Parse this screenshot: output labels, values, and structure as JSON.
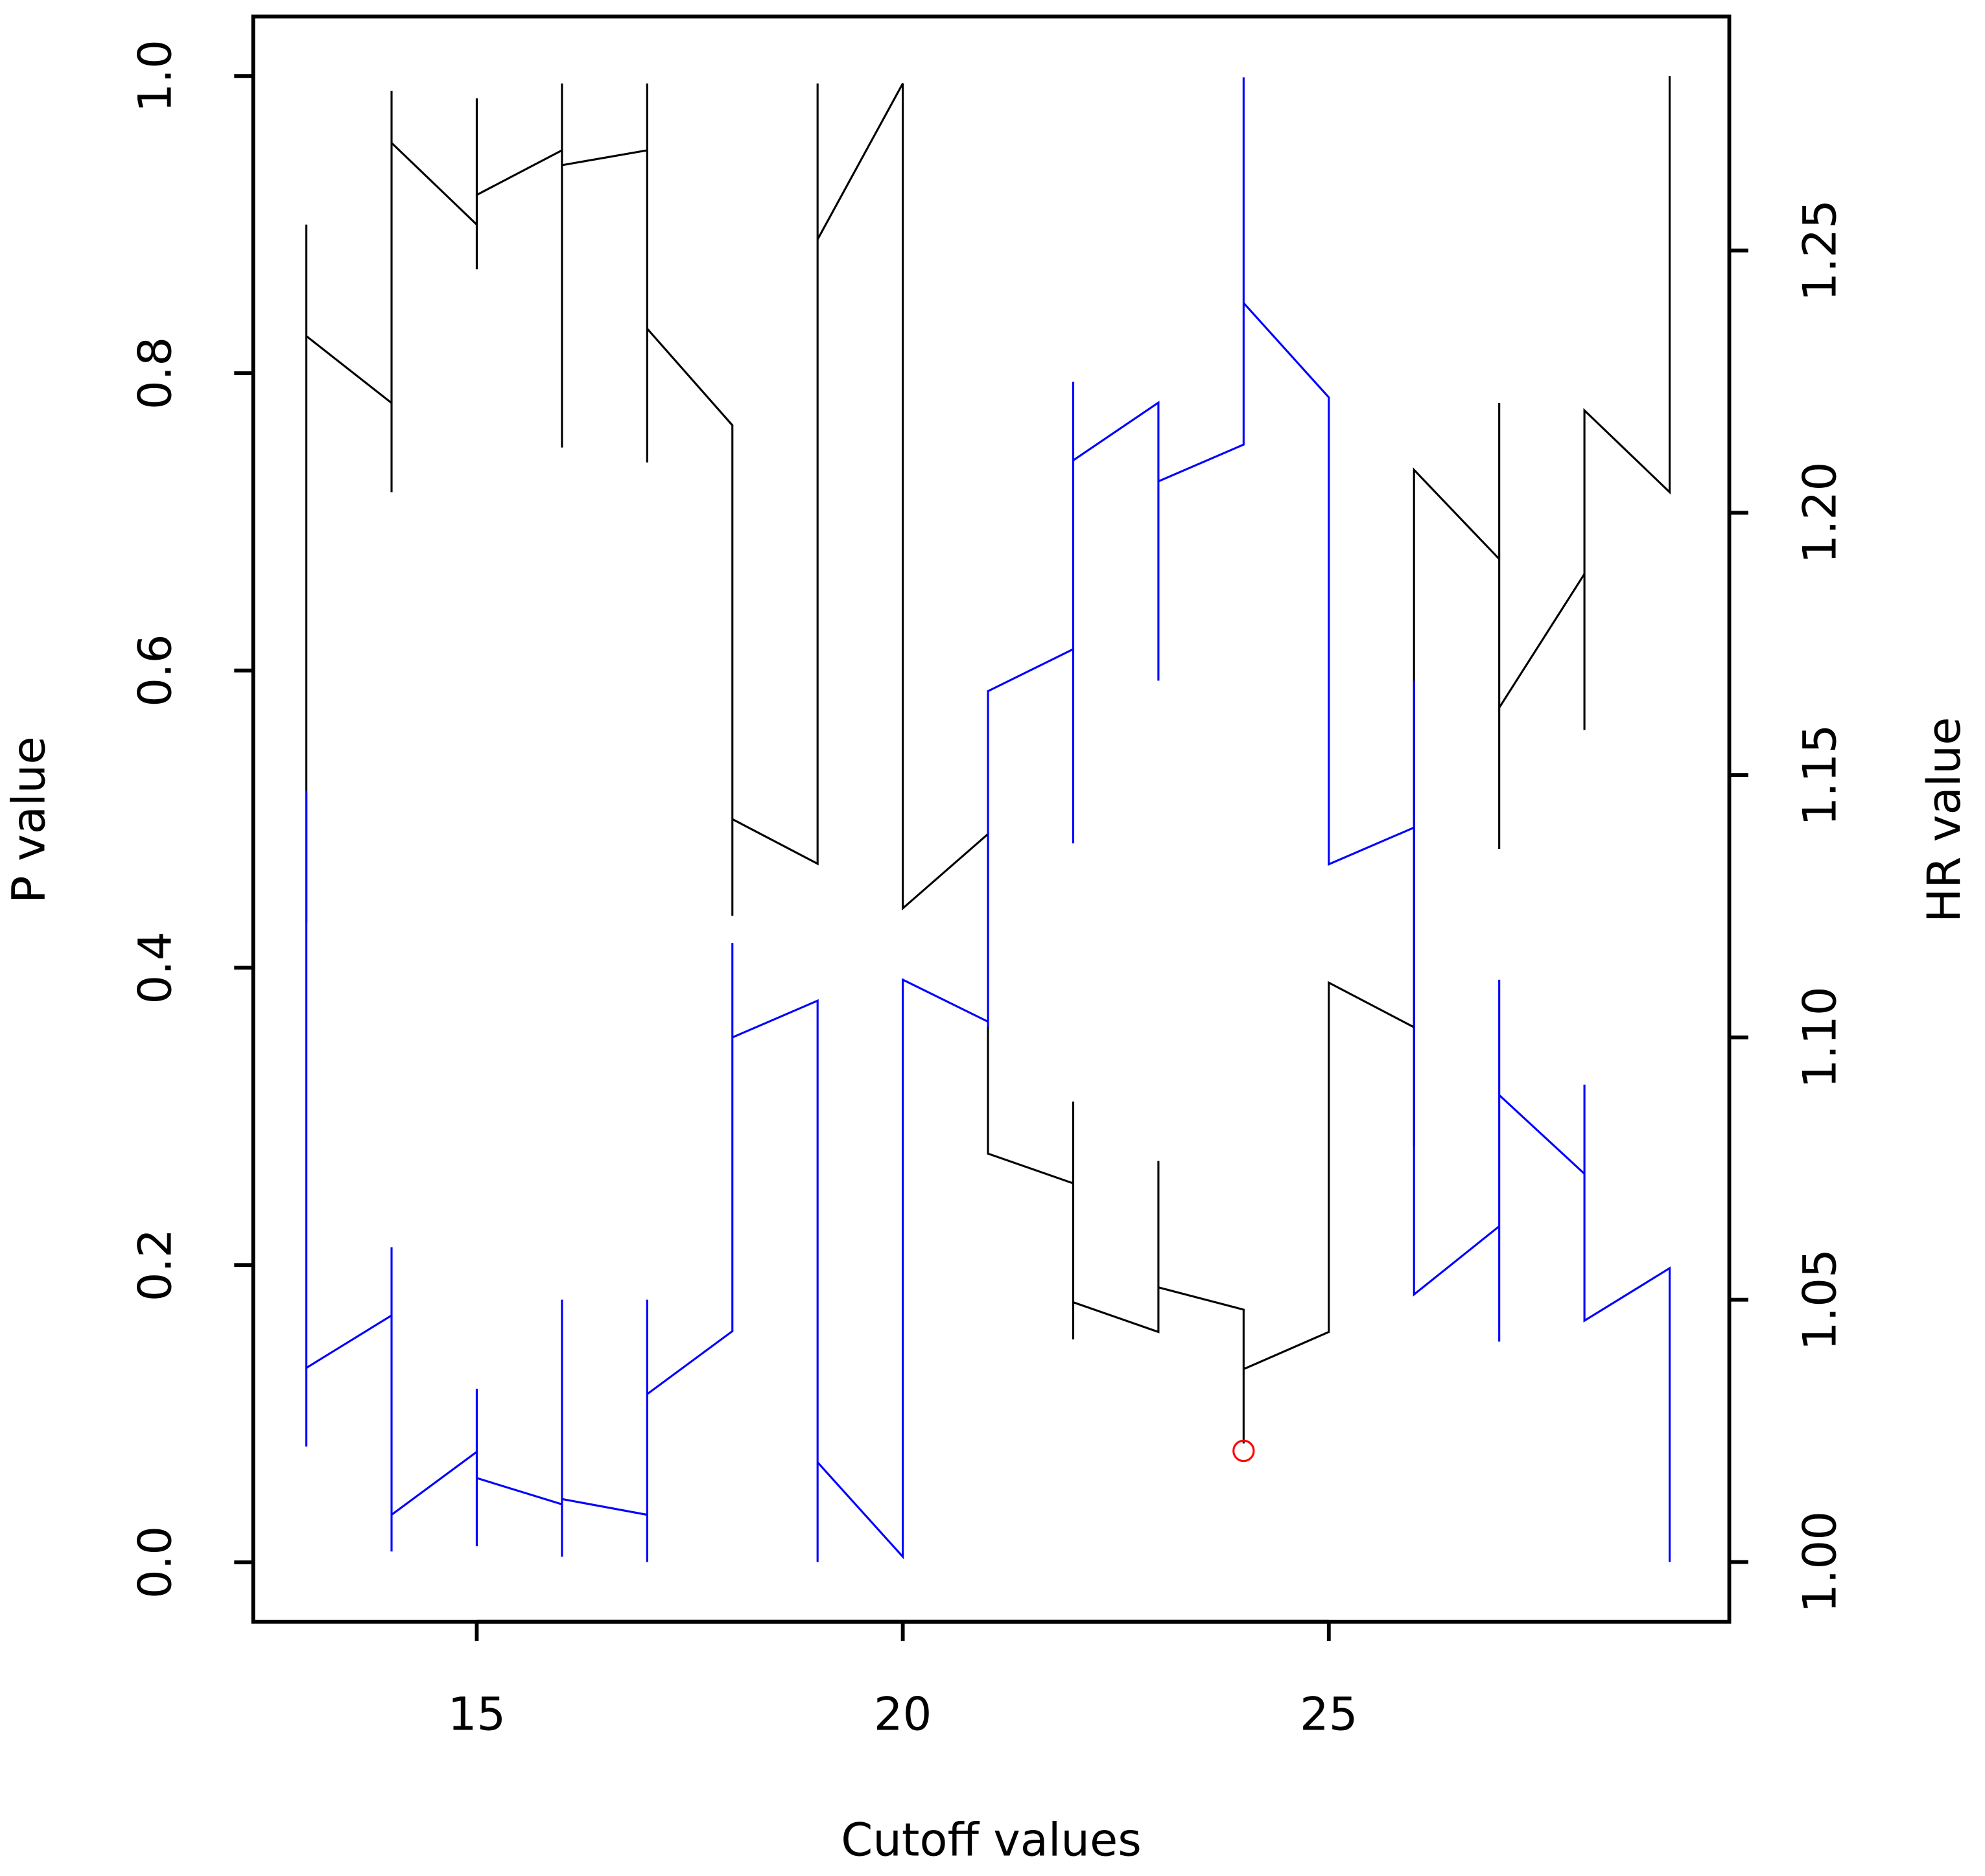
{
  "chart_data": {
    "type": "line",
    "x_label": "Cutoff values",
    "y_label": "P value",
    "y2_label": "HR value",
    "y2_label_color": "#0000ff",
    "xlim": [
      12.376,
      29.7
    ],
    "xticks": [
      15,
      20,
      25
    ],
    "ylim": [
      -0.04,
      1.04
    ],
    "yticks": [
      {
        "value": 0,
        "label": "0.0"
      },
      0.2,
      0.4,
      0.6,
      0.8,
      {
        "value": 1,
        "label": "1.0"
      }
    ],
    "y2lim": [
      0.9886,
      1.2946
    ],
    "y2ticks": [
      {
        "value": 1,
        "label": "1.00"
      },
      {
        "value": 1.05,
        "label": "1.05"
      },
      {
        "value": 1.1,
        "label": "1.10"
      },
      {
        "value": 1.15,
        "label": "1.15"
      },
      {
        "value": 1.2,
        "label": "1.20"
      },
      {
        "value": 1.25,
        "label": "1.25"
      }
    ],
    "series": [
      {
        "color": "#000000",
        "x": [
          13,
          13,
          13,
          14,
          14,
          14,
          14,
          15,
          15,
          15,
          15,
          16,
          16,
          16,
          16,
          17,
          17,
          17,
          17,
          18,
          18,
          18,
          19,
          19,
          19,
          20,
          20,
          21,
          21,
          21,
          22,
          22,
          22,
          22,
          23,
          23,
          23,
          24,
          24,
          24,
          25,
          25,
          26,
          26,
          26,
          27,
          27,
          27,
          27,
          28,
          28,
          28,
          29,
          29
        ],
        "values": [
          0.43,
          0.9,
          0.825,
          0.78,
          0.72,
          0.99,
          0.955,
          0.9,
          0.87,
          0.985,
          0.92,
          0.95,
          0.75,
          0.995,
          0.94,
          0.95,
          0.74,
          0.995,
          0.83,
          0.765,
          0.435,
          0.5,
          0.47,
          0.995,
          0.89,
          0.995,
          0.44,
          0.49,
          0.36,
          0.275,
          0.255,
          0.15,
          0.31,
          0.175,
          0.155,
          0.27,
          0.185,
          0.17,
          0.08,
          0.13,
          0.155,
          0.39,
          0.36,
          0.28,
          0.735,
          0.675,
          0.48,
          0.78,
          0.575,
          0.665,
          0.56,
          0.775,
          0.72,
          1.0
        ]
      },
      {
        "color": "#0000ff",
        "axis": "y2",
        "x": [
          13,
          13,
          13,
          14,
          14,
          14,
          14,
          15,
          15,
          15,
          15,
          16,
          16,
          16,
          16,
          17,
          17,
          17,
          17,
          18,
          18,
          18,
          19,
          19,
          19,
          20,
          20,
          21,
          21,
          21,
          22,
          22,
          22,
          22,
          23,
          23,
          23,
          24,
          24,
          24,
          25,
          25,
          26,
          26,
          26,
          27,
          27,
          27,
          27,
          28,
          28,
          28,
          29,
          29
        ],
        "values": [
          1.147,
          1.022,
          1.037,
          1.047,
          1.06,
          1.002,
          1.009,
          1.021,
          1.033,
          1.003,
          1.016,
          1.011,
          1.05,
          1.001,
          1.012,
          1.009,
          1.05,
          1.0,
          1.032,
          1.044,
          1.118,
          1.1,
          1.107,
          1.0,
          1.019,
          1.001,
          1.111,
          1.103,
          1.102,
          1.166,
          1.174,
          1.137,
          1.225,
          1.21,
          1.221,
          1.168,
          1.206,
          1.213,
          1.283,
          1.24,
          1.222,
          1.133,
          1.14,
          1.168,
          1.051,
          1.064,
          1.042,
          1.111,
          1.089,
          1.074,
          1.091,
          1.046,
          1.056,
          1.0
        ]
      }
    ],
    "highlight": {
      "x": 24,
      "y": 0.075,
      "color": "#ff0000"
    }
  }
}
